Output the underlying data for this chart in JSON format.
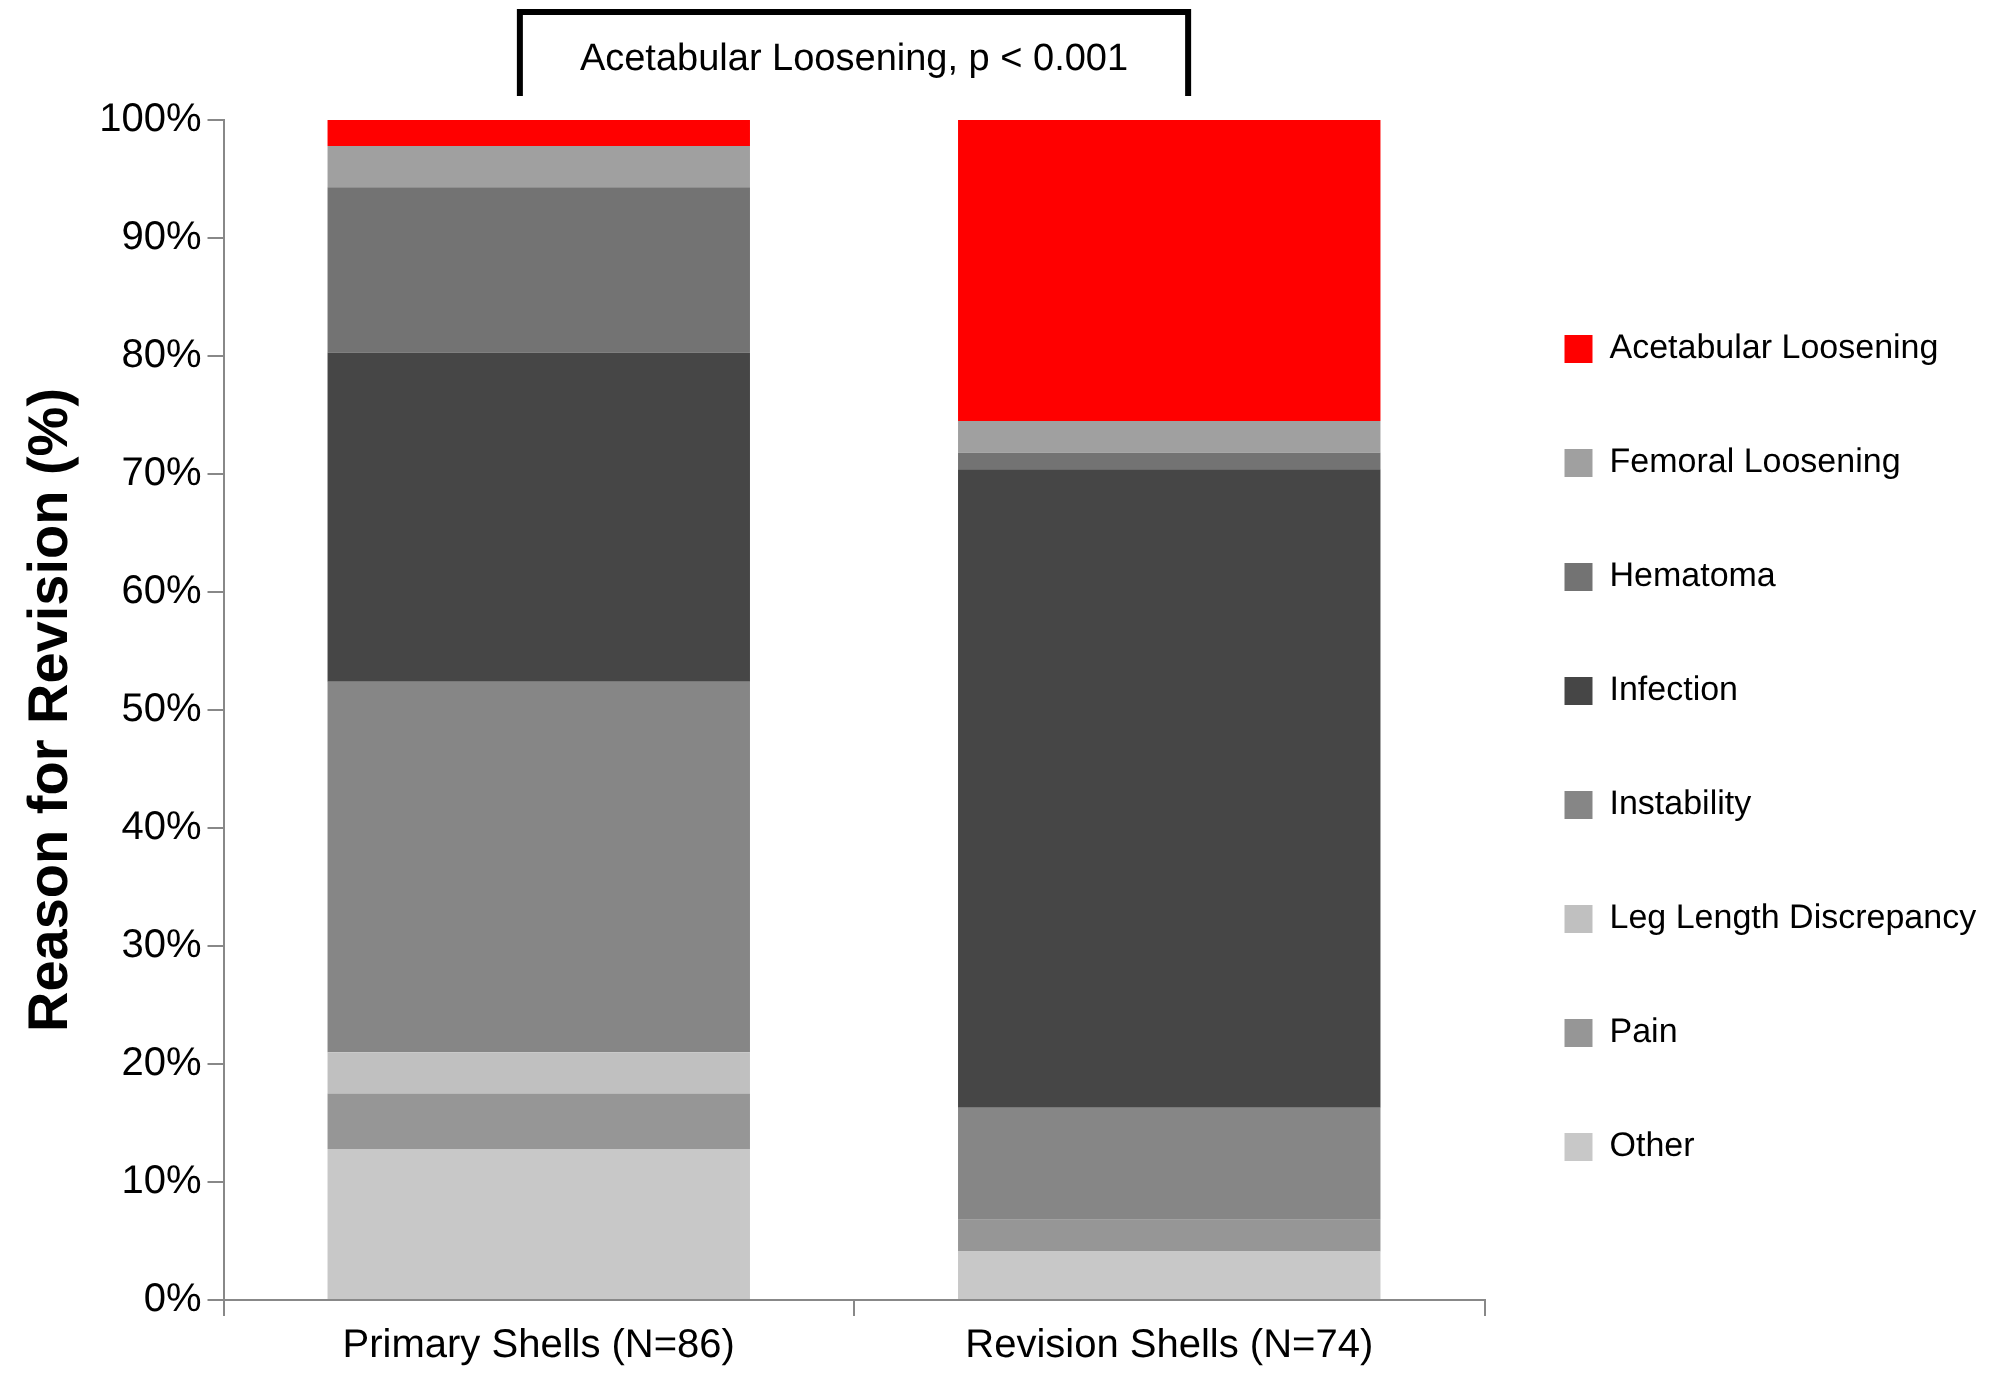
{
  "chart_data": {
    "type": "bar",
    "stacked": true,
    "ylabel": "Reason for Revision (%)",
    "categories": [
      "Primary Shells (N=86)",
      "Revision Shells (N=74)"
    ],
    "series": [
      {
        "name": "Other",
        "color": "#c8c8c8",
        "values": [
          12.8,
          4.1
        ]
      },
      {
        "name": "Pain",
        "color": "#969696",
        "values": [
          4.7,
          2.7
        ]
      },
      {
        "name": "Leg Length Discrepancy",
        "color": "#c0c0c0",
        "values": [
          3.5,
          0
        ]
      },
      {
        "name": "Instability",
        "color": "#868686",
        "values": [
          31.4,
          9.5
        ]
      },
      {
        "name": "Infection",
        "color": "#464646",
        "values": [
          27.9,
          54.1
        ]
      },
      {
        "name": "Hematoma",
        "color": "#737373",
        "values": [
          14.0,
          1.4
        ]
      },
      {
        "name": "Femoral Loosening",
        "color": "#a0a0a0",
        "values": [
          3.5,
          2.7
        ]
      },
      {
        "name": "Acetabular Loosening",
        "color": "#ff0000",
        "values": [
          2.2,
          25.7
        ]
      }
    ],
    "ylim": [
      0,
      100
    ],
    "yticks": [
      {
        "value": 0,
        "label": "0%"
      },
      {
        "value": 10,
        "label": "10%"
      },
      {
        "value": 20,
        "label": "20%"
      },
      {
        "value": 30,
        "label": "30%"
      },
      {
        "value": 40,
        "label": "40%"
      },
      {
        "value": 50,
        "label": "50%"
      },
      {
        "value": 60,
        "label": "60%"
      },
      {
        "value": 70,
        "label": "70%"
      },
      {
        "value": 80,
        "label": "80%"
      },
      {
        "value": 90,
        "label": "90%"
      },
      {
        "value": 100,
        "label": "100%"
      }
    ],
    "grid": false,
    "legend": "right",
    "annotations": [
      "Acetabular Loosening, p < 0.001"
    ]
  }
}
